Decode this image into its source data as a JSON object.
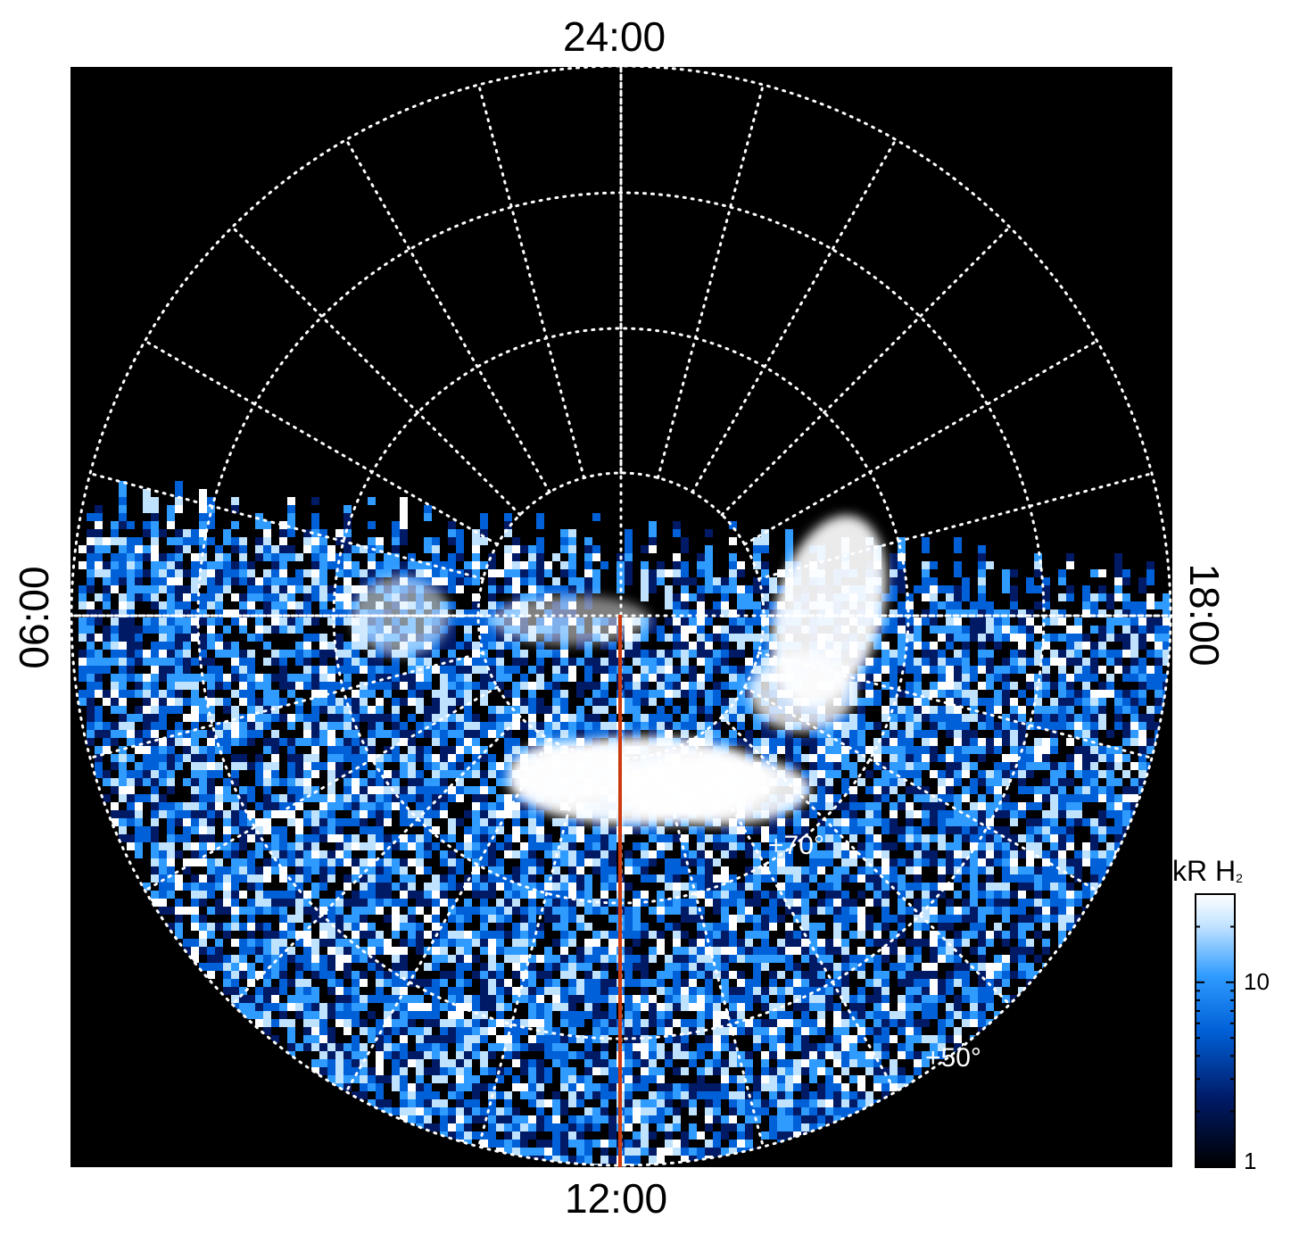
{
  "labels": {
    "top": "24:00",
    "bottom": "12:00",
    "left": "06:00",
    "right": "18:00"
  },
  "latitude_labels": [
    "+70°",
    "+50°"
  ],
  "colorbar": {
    "title": "kR H",
    "title_sub": "2",
    "ticks": [
      "10",
      "1"
    ],
    "scale": "log",
    "range": [
      1,
      30
    ],
    "colors": [
      "#000000",
      "#001a66",
      "#0060d8",
      "#2f9bff",
      "#bfe2ff",
      "#ffffff"
    ]
  },
  "colors": {
    "background": "#000000",
    "grid": "#ffffff",
    "meridian_line": "#cc3b10"
  }
}
